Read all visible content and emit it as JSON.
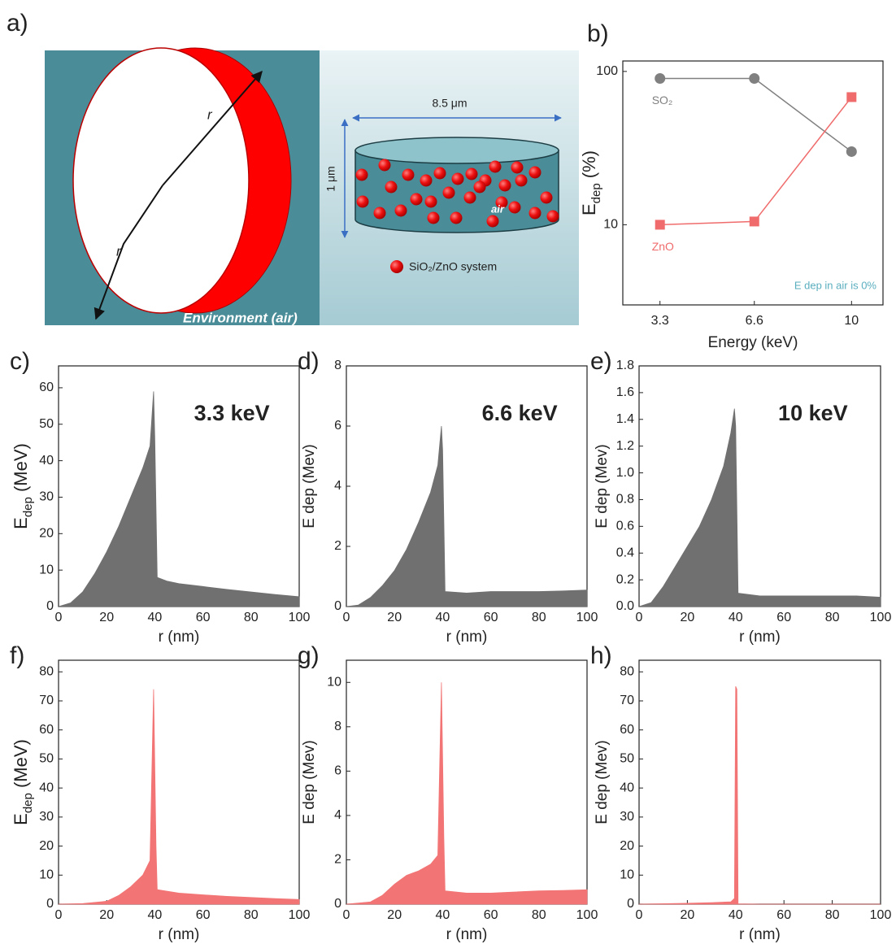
{
  "diagram": {
    "panel": "a)",
    "radius_labels": [
      "r",
      "r"
    ],
    "environment": "Environment (air)",
    "width_label": "8.5 μm",
    "height_label": "1 μm",
    "air": "air",
    "legend": "SiO₂/ZnO system"
  },
  "chart_data": [
    {
      "type": "line",
      "panel": "b)",
      "xlabel": "Energy (keV)",
      "ylabel": "E",
      "ylabel_sub": "dep",
      "ylabel_unit": " (%)",
      "yscale": "log",
      "x": [
        3.3,
        6.6,
        10
      ],
      "xlim": [
        2,
        11.1
      ],
      "xticks": [
        3.3,
        6.6,
        10
      ],
      "ylim": [
        3,
        117
      ],
      "yticks": [
        10,
        100
      ],
      "series": [
        {
          "name": "SO₂",
          "color": "#808080",
          "marker": "circle",
          "values": [
            90,
            90,
            30
          ]
        },
        {
          "name": "ZnO",
          "color": "#f06c6c",
          "marker": "square",
          "values": [
            10,
            10.5,
            68
          ]
        }
      ],
      "annotation": "E dep in air is 0%"
    },
    {
      "type": "area",
      "panel": "c)",
      "title": "3.3 keV",
      "xlabel": "r (nm)",
      "ylabel": "E",
      "ylabel_sub": "dep",
      "ylabel_unit": " (MeV)",
      "color": "#707070",
      "x": [
        0,
        5,
        10,
        15,
        20,
        25,
        30,
        35,
        38,
        39.5,
        40,
        41,
        45,
        50,
        60,
        70,
        80,
        90,
        100
      ],
      "values": [
        0,
        1,
        4,
        9,
        15,
        22,
        30,
        38,
        44,
        59,
        46,
        8,
        7,
        6.3,
        5.5,
        4.7,
        4,
        3.3,
        2.7
      ],
      "xlim": [
        0,
        100
      ],
      "xticks": [
        0,
        20,
        40,
        60,
        80,
        100
      ],
      "ylim": [
        0,
        66
      ],
      "yticks": [
        0,
        10,
        20,
        30,
        40,
        50,
        60
      ]
    },
    {
      "type": "area",
      "panel": "d)",
      "title": "6.6 keV",
      "xlabel": "r (nm)",
      "ylabel": "E dep (Mev)",
      "color": "#707070",
      "x": [
        0,
        5,
        10,
        15,
        20,
        25,
        30,
        35,
        38,
        39.5,
        40,
        41,
        50,
        60,
        70,
        80,
        90,
        100
      ],
      "values": [
        0,
        0.05,
        0.3,
        0.7,
        1.2,
        1.9,
        2.8,
        3.8,
        4.7,
        6,
        5.2,
        0.5,
        0.45,
        0.5,
        0.5,
        0.5,
        0.52,
        0.55
      ],
      "xlim": [
        0,
        100
      ],
      "xticks": [
        0,
        20,
        40,
        60,
        80,
        100
      ],
      "ylim": [
        0,
        8
      ],
      "yticks": [
        0,
        2,
        4,
        6,
        8
      ]
    },
    {
      "type": "area",
      "panel": "e)",
      "title": "10 keV",
      "xlabel": "r (nm)",
      "ylabel": "E dep (Mev)",
      "color": "#707070",
      "x": [
        0,
        5,
        10,
        15,
        20,
        25,
        30,
        35,
        38,
        39.5,
        40,
        41,
        50,
        60,
        70,
        80,
        90,
        100
      ],
      "values": [
        0,
        0.03,
        0.15,
        0.3,
        0.45,
        0.6,
        0.8,
        1.05,
        1.3,
        1.48,
        1.35,
        0.1,
        0.08,
        0.08,
        0.08,
        0.08,
        0.08,
        0.07
      ],
      "xlim": [
        0,
        100
      ],
      "xticks": [
        0,
        20,
        40,
        60,
        80,
        100
      ],
      "ylim": [
        0,
        1.8
      ],
      "yticks": [
        {
          "value": 0,
          "label": "0.0"
        },
        0.2,
        0.4,
        0.6,
        0.8,
        {
          "value": 1,
          "label": "1.0"
        },
        1.2,
        1.4,
        1.6,
        1.8
      ]
    },
    {
      "type": "area",
      "panel": "f)",
      "xlabel": "r (nm)",
      "ylabel": "E",
      "ylabel_sub": "dep",
      "ylabel_unit": " (MeV)",
      "color": "#f27474",
      "x": [
        0,
        10,
        20,
        25,
        30,
        35,
        38,
        39.5,
        40.5,
        41,
        50,
        60,
        70,
        80,
        90,
        100
      ],
      "values": [
        0,
        0.2,
        1,
        3,
        6,
        10,
        15,
        74,
        20,
        5,
        3.8,
        3.2,
        2.7,
        2.3,
        1.9,
        1.6
      ],
      "xlim": [
        0,
        100
      ],
      "xticks": [
        0,
        20,
        40,
        60,
        80,
        100
      ],
      "ylim": [
        0,
        84
      ],
      "yticks": [
        0,
        10,
        20,
        30,
        40,
        50,
        60,
        70,
        80
      ]
    },
    {
      "type": "area",
      "panel": "g)",
      "xlabel": "r (nm)",
      "ylabel": "E dep (Mev)",
      "color": "#f27474",
      "x": [
        0,
        10,
        15,
        20,
        25,
        30,
        35,
        38,
        39.5,
        40.5,
        41,
        50,
        60,
        70,
        80,
        90,
        100
      ],
      "values": [
        0,
        0.1,
        0.4,
        0.9,
        1.3,
        1.5,
        1.8,
        2.2,
        10,
        3,
        0.6,
        0.5,
        0.5,
        0.55,
        0.6,
        0.62,
        0.65
      ],
      "xlim": [
        0,
        100
      ],
      "xticks": [
        0,
        20,
        40,
        60,
        80,
        100
      ],
      "ylim": [
        0,
        11
      ],
      "yticks": [
        0,
        2,
        4,
        6,
        8,
        10
      ]
    },
    {
      "type": "area",
      "panel": "h)",
      "xlabel": "r (nm)",
      "ylabel": "E dep (Mev)",
      "color": "#f27474",
      "x": [
        0,
        20,
        30,
        38,
        39.5,
        40,
        40.5,
        41,
        50,
        100
      ],
      "values": [
        0,
        0.3,
        0.5,
        0.8,
        2,
        75,
        74,
        0.1,
        0,
        0
      ],
      "xlim": [
        0,
        100
      ],
      "xticks": [
        0,
        20,
        40,
        60,
        80,
        100
      ],
      "ylim": [
        0,
        84
      ],
      "yticks": [
        0,
        10,
        20,
        30,
        40,
        50,
        60,
        70,
        80
      ]
    }
  ]
}
